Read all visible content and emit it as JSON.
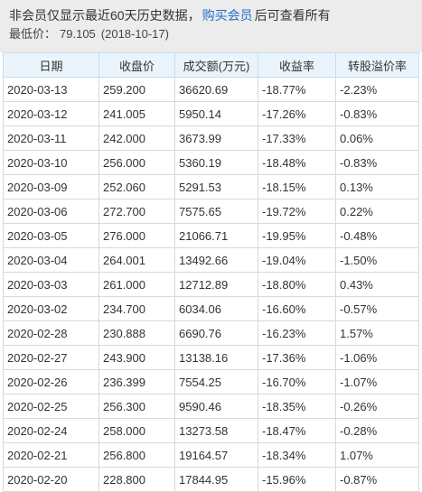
{
  "notice": {
    "prefix": "非会员仅显示最近60天历史数据，",
    "buy_link": "购买会员",
    "suffix": "后可查看所有",
    "min_label": "最低价：",
    "min_value": "79.105",
    "min_date": "(2018-10-17)"
  },
  "table": {
    "headers": [
      "日期",
      "收盘价",
      "成交额(万元)",
      "收益率",
      "转股溢价率"
    ],
    "rows": [
      [
        "2020-03-13",
        "259.200",
        "36620.69",
        "-18.77%",
        "-2.23%"
      ],
      [
        "2020-03-12",
        "241.005",
        "5950.14",
        "-17.26%",
        "-0.83%"
      ],
      [
        "2020-03-11",
        "242.000",
        "3673.99",
        "-17.33%",
        "0.06%"
      ],
      [
        "2020-03-10",
        "256.000",
        "5360.19",
        "-18.48%",
        "-0.83%"
      ],
      [
        "2020-03-09",
        "252.060",
        "5291.53",
        "-18.15%",
        "0.13%"
      ],
      [
        "2020-03-06",
        "272.700",
        "7575.65",
        "-19.72%",
        "0.22%"
      ],
      [
        "2020-03-05",
        "276.000",
        "21066.71",
        "-19.95%",
        "-0.48%"
      ],
      [
        "2020-03-04",
        "264.001",
        "13492.66",
        "-19.04%",
        "-1.50%"
      ],
      [
        "2020-03-03",
        "261.000",
        "12712.89",
        "-18.80%",
        "0.43%"
      ],
      [
        "2020-03-02",
        "234.700",
        "6034.06",
        "-16.60%",
        "-0.57%"
      ],
      [
        "2020-02-28",
        "230.888",
        "6690.76",
        "-16.23%",
        "1.57%"
      ],
      [
        "2020-02-27",
        "243.900",
        "13138.16",
        "-17.36%",
        "-1.06%"
      ],
      [
        "2020-02-26",
        "236.399",
        "7554.25",
        "-16.70%",
        "-1.07%"
      ],
      [
        "2020-02-25",
        "256.300",
        "9590.46",
        "-18.35%",
        "-0.26%"
      ],
      [
        "2020-02-24",
        "258.000",
        "13273.58",
        "-18.47%",
        "-0.28%"
      ],
      [
        "2020-02-21",
        "256.800",
        "19164.57",
        "-18.34%",
        "1.07%"
      ],
      [
        "2020-02-20",
        "228.800",
        "17844.95",
        "-15.96%",
        "-0.87%"
      ]
    ]
  },
  "colors": {
    "negative": "#1a8f1a",
    "positive": "#e02020",
    "link": "#1f6fc5",
    "header_bg": "#eaf4fc"
  }
}
